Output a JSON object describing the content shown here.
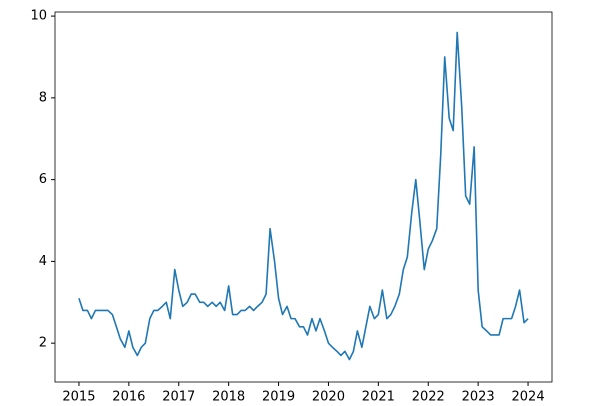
{
  "chart_data": {
    "type": "line",
    "x": [
      2015.0,
      2015.08,
      2015.17,
      2015.25,
      2015.33,
      2015.42,
      2015.5,
      2015.58,
      2015.67,
      2015.75,
      2015.83,
      2015.92,
      2016.0,
      2016.08,
      2016.17,
      2016.25,
      2016.33,
      2016.42,
      2016.5,
      2016.58,
      2016.67,
      2016.75,
      2016.83,
      2016.92,
      2017.0,
      2017.08,
      2017.17,
      2017.25,
      2017.33,
      2017.42,
      2017.5,
      2017.58,
      2017.67,
      2017.75,
      2017.83,
      2017.92,
      2018.0,
      2018.08,
      2018.17,
      2018.25,
      2018.33,
      2018.42,
      2018.5,
      2018.58,
      2018.67,
      2018.75,
      2018.83,
      2018.92,
      2019.0,
      2019.08,
      2019.17,
      2019.25,
      2019.33,
      2019.42,
      2019.5,
      2019.58,
      2019.67,
      2019.75,
      2019.83,
      2019.92,
      2020.0,
      2020.08,
      2020.17,
      2020.25,
      2020.33,
      2020.42,
      2020.5,
      2020.58,
      2020.67,
      2020.75,
      2020.83,
      2020.92,
      2021.0,
      2021.08,
      2021.17,
      2021.25,
      2021.33,
      2021.42,
      2021.5,
      2021.58,
      2021.67,
      2021.75,
      2021.83,
      2021.92,
      2022.0,
      2022.08,
      2022.17,
      2022.25,
      2022.33,
      2022.42,
      2022.5,
      2022.58,
      2022.67,
      2022.75,
      2022.83,
      2022.92,
      2023.0,
      2023.08,
      2023.17,
      2023.25,
      2023.33,
      2023.42,
      2023.5,
      2023.58,
      2023.67,
      2023.75,
      2023.83,
      2023.92,
      2024.0
    ],
    "series": [
      {
        "color": "#1f77b4",
        "values": [
          3.1,
          2.8,
          2.8,
          2.6,
          2.8,
          2.8,
          2.8,
          2.8,
          2.7,
          2.4,
          2.1,
          1.9,
          2.3,
          1.9,
          1.7,
          1.9,
          2.0,
          2.6,
          2.8,
          2.8,
          2.9,
          3.0,
          2.6,
          3.8,
          3.3,
          2.9,
          3.0,
          3.2,
          3.2,
          3.0,
          3.0,
          2.9,
          3.0,
          2.9,
          3.0,
          2.8,
          3.4,
          2.7,
          2.7,
          2.8,
          2.8,
          2.9,
          2.8,
          2.9,
          3.0,
          3.2,
          4.8,
          4.0,
          3.1,
          2.7,
          2.9,
          2.6,
          2.6,
          2.4,
          2.4,
          2.2,
          2.6,
          2.3,
          2.6,
          2.3,
          2.0,
          1.9,
          1.8,
          1.7,
          1.8,
          1.6,
          1.8,
          2.3,
          1.9,
          2.4,
          2.9,
          2.6,
          2.7,
          3.3,
          2.6,
          2.7,
          2.9,
          3.2,
          3.8,
          4.1,
          5.2,
          6.0,
          5.0,
          3.8,
          4.3,
          4.5,
          4.8,
          6.6,
          9.0,
          7.5,
          7.2,
          9.6,
          7.8,
          5.6,
          5.4,
          6.8,
          3.3,
          2.4,
          2.3,
          2.2,
          2.2,
          2.2,
          2.6,
          2.6,
          2.6,
          2.9,
          3.3,
          2.5,
          2.6
        ]
      }
    ],
    "xlim": [
      2014.52,
      2024.48
    ],
    "xticks": [
      2015,
      2016,
      2017,
      2018,
      2019,
      2020,
      2021,
      2022,
      2023,
      2024
    ],
    "ylim": [
      1.05,
      10.1
    ],
    "yticks": [
      2,
      4,
      6,
      8,
      10
    ],
    "grid": false
  }
}
